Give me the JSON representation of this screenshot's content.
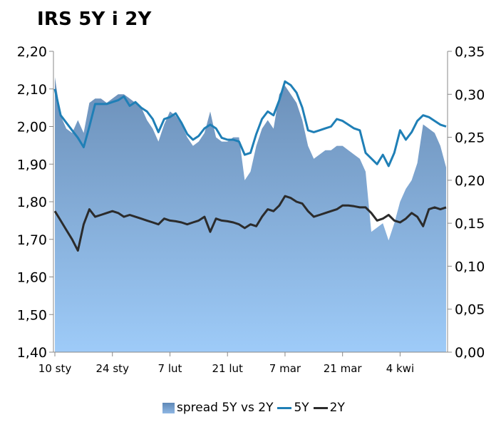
{
  "title": "IRS 5Y i 2Y",
  "colors": {
    "spread_top": "#6b8fb8",
    "spread_bottom": "#9ecbf8",
    "line_5y": "#1f7fb6",
    "line_2y": "#2b2b2b"
  },
  "chart_data": {
    "type": "line",
    "title": "IRS 5Y i 2Y",
    "x_tick_labels": [
      "10 sty",
      "24 sty",
      "7 lut",
      "21 lut",
      "7 mar",
      "21 mar",
      "4 kwi"
    ],
    "x_tick_index": [
      0,
      10,
      20,
      30,
      40,
      50,
      60
    ],
    "y_left": {
      "ticks": [
        "1,40",
        "1,50",
        "1,60",
        "1,70",
        "1,80",
        "1,90",
        "2,00",
        "2,10",
        "2,20"
      ],
      "ylim": [
        1.4,
        2.2
      ]
    },
    "y_right": {
      "ticks": [
        "0,00",
        "0,05",
        "0,10",
        "0,15",
        "0,20",
        "0,25",
        "0,30",
        "0,35"
      ],
      "ylim": [
        0.0,
        0.35
      ]
    },
    "series": [
      {
        "name": "5Y",
        "axis": "left",
        "values": [
          2.1,
          2.03,
          2.01,
          1.99,
          1.97,
          1.945,
          2.0,
          2.06,
          2.06,
          2.06,
          2.065,
          2.07,
          2.08,
          2.055,
          2.065,
          2.05,
          2.04,
          2.02,
          1.985,
          2.02,
          2.025,
          2.035,
          2.01,
          1.98,
          1.965,
          1.975,
          1.995,
          2.005,
          1.995,
          1.97,
          1.965,
          1.965,
          1.96,
          1.925,
          1.93,
          1.98,
          2.02,
          2.04,
          2.03,
          2.07,
          2.12,
          2.11,
          2.09,
          2.05,
          1.99,
          1.985,
          1.99,
          1.995,
          2.0,
          2.02,
          2.015,
          2.005,
          1.995,
          1.99,
          1.93,
          1.915,
          1.9,
          1.925,
          1.895,
          1.93,
          1.99,
          1.965,
          1.985,
          2.015,
          2.03,
          2.025,
          2.015,
          2.005,
          2.0
        ]
      },
      {
        "name": "2Y",
        "axis": "left",
        "values": [
          1.775,
          1.75,
          1.725,
          1.7,
          1.67,
          1.74,
          1.78,
          1.76,
          1.765,
          1.77,
          1.775,
          1.77,
          1.76,
          1.765,
          1.76,
          1.755,
          1.75,
          1.745,
          1.74,
          1.755,
          1.75,
          1.748,
          1.745,
          1.74,
          1.745,
          1.75,
          1.76,
          1.72,
          1.755,
          1.75,
          1.748,
          1.745,
          1.74,
          1.73,
          1.74,
          1.735,
          1.76,
          1.78,
          1.775,
          1.79,
          1.815,
          1.81,
          1.8,
          1.795,
          1.775,
          1.76,
          1.765,
          1.77,
          1.775,
          1.78,
          1.79,
          1.79,
          1.788,
          1.785,
          1.785,
          1.77,
          1.75,
          1.755,
          1.765,
          1.75,
          1.745,
          1.755,
          1.77,
          1.76,
          1.735,
          1.78,
          1.785,
          1.78,
          1.785
        ]
      },
      {
        "name": "spread 5Y vs 2Y",
        "axis": "right",
        "type": "area",
        "values": [
          0.32,
          0.275,
          0.26,
          0.255,
          0.27,
          0.255,
          0.29,
          0.295,
          0.295,
          0.29,
          0.295,
          0.3,
          0.3,
          0.295,
          0.29,
          0.285,
          0.27,
          0.26,
          0.245,
          0.265,
          0.28,
          0.275,
          0.265,
          0.25,
          0.24,
          0.245,
          0.255,
          0.28,
          0.25,
          0.245,
          0.245,
          0.25,
          0.25,
          0.2,
          0.21,
          0.24,
          0.26,
          0.27,
          0.26,
          0.3,
          0.31,
          0.3,
          0.29,
          0.27,
          0.24,
          0.225,
          0.23,
          0.235,
          0.235,
          0.24,
          0.24,
          0.235,
          0.23,
          0.225,
          0.21,
          0.14,
          0.145,
          0.15,
          0.13,
          0.15,
          0.175,
          0.19,
          0.2,
          0.22,
          0.265,
          0.26,
          0.255,
          0.24,
          0.215
        ]
      }
    ]
  },
  "legend": {
    "spread": "spread 5Y vs 2Y",
    "s5y": "5Y",
    "s2y": "2Y"
  }
}
